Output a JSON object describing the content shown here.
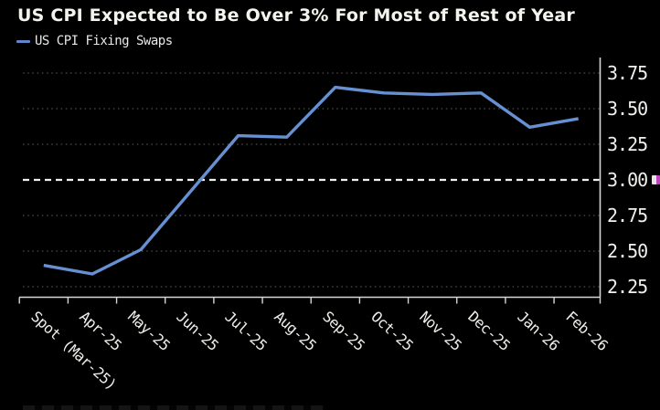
{
  "chart_data": {
    "type": "line",
    "title": "US CPI Expected to Be Over 3% For Most of Rest of Year",
    "categories": [
      "Spot (Mar-25)",
      "Apr-25",
      "May-25",
      "Jun-25",
      "Jul-25",
      "Aug-25",
      "Sep-25",
      "Oct-25",
      "Nov-25",
      "Dec-25",
      "Jan-26",
      "Feb-26"
    ],
    "series": [
      {
        "name": "US CPI Fixing Swaps",
        "values": [
          2.4,
          2.34,
          2.51,
          2.91,
          3.31,
          3.3,
          3.65,
          3.61,
          3.6,
          3.61,
          3.37,
          3.43
        ]
      }
    ],
    "ylim": [
      2.2,
      3.85
    ],
    "yticks": [
      3.75,
      3.5,
      3.25,
      3.0,
      2.75,
      2.5,
      2.25
    ],
    "ytick_format": "0.00",
    "reference_line": 3.0,
    "grid": "dotted-horizontal",
    "legend_position": "top-left",
    "y_axis_side": "right",
    "x_labels_rotated": true
  },
  "y_axis": {
    "tick_labels": [
      "3.75",
      "3.50",
      "3.25",
      "3.00",
      "2.75",
      "2.50",
      "2.25"
    ],
    "marked_level": "3.00"
  },
  "icons": {
    "level_marker": "annotation-flag-icon"
  },
  "colors": {
    "background": "#000000",
    "title_text": "#f4f4ef",
    "series_line": "#6690d2",
    "legend_marker": "#5d87c8",
    "grid_dotted": "#9b9b8c",
    "reference_dashed": "#f0f0f0",
    "axis": "#d6d6d6",
    "tick_text": "#efefec",
    "level_marker_magenta": "#c243c0"
  }
}
